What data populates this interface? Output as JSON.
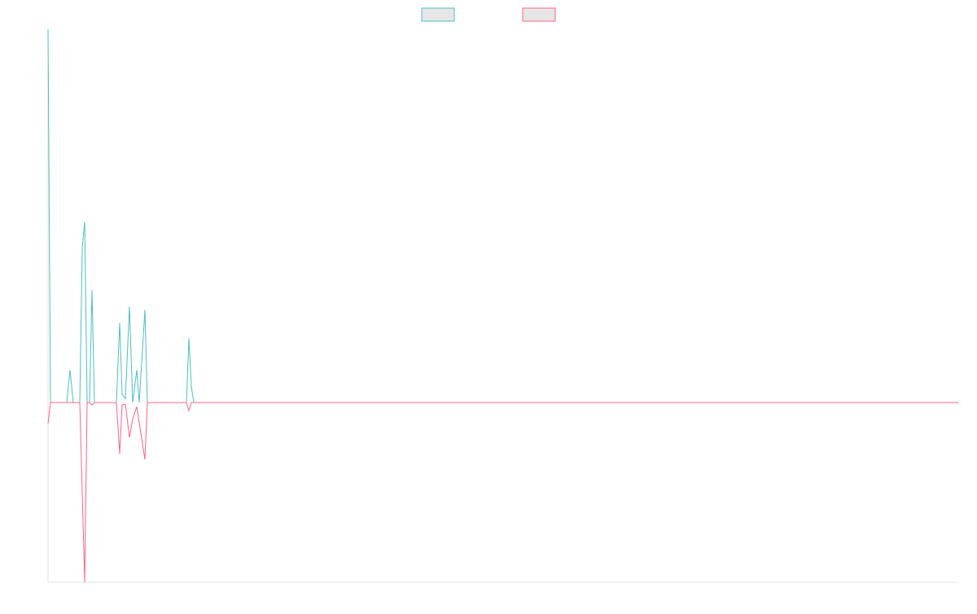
{
  "chart_data": {
    "type": "line",
    "x": [
      0,
      3,
      23,
      27,
      31,
      39,
      42,
      45,
      48,
      51,
      54,
      57,
      84,
      88,
      91,
      95,
      100,
      104,
      109,
      112,
      119,
      122,
      170,
      173,
      176,
      179,
      1118
    ],
    "series": [
      {
        "color": "#4bc0c0",
        "values": [
          459,
          0,
          0,
          40,
          0,
          0,
          190,
          222,
          0,
          0,
          138,
          0,
          0,
          98,
          10,
          5,
          118,
          0,
          40,
          0,
          114,
          0,
          0,
          79,
          20,
          0,
          0
        ]
      },
      {
        "color": "#ff6384",
        "values": [
          -26,
          0,
          0,
          0,
          0,
          0,
          -110,
          -221,
          0,
          0,
          -3,
          0,
          0,
          -63,
          -3,
          -2,
          -43,
          -20,
          -5,
          -25,
          -70,
          0,
          0,
          -10,
          0,
          0,
          0
        ]
      }
    ],
    "xlim": [
      0,
      1118
    ],
    "ylim": [
      -221,
      459
    ],
    "grid": false,
    "legend": "top"
  }
}
